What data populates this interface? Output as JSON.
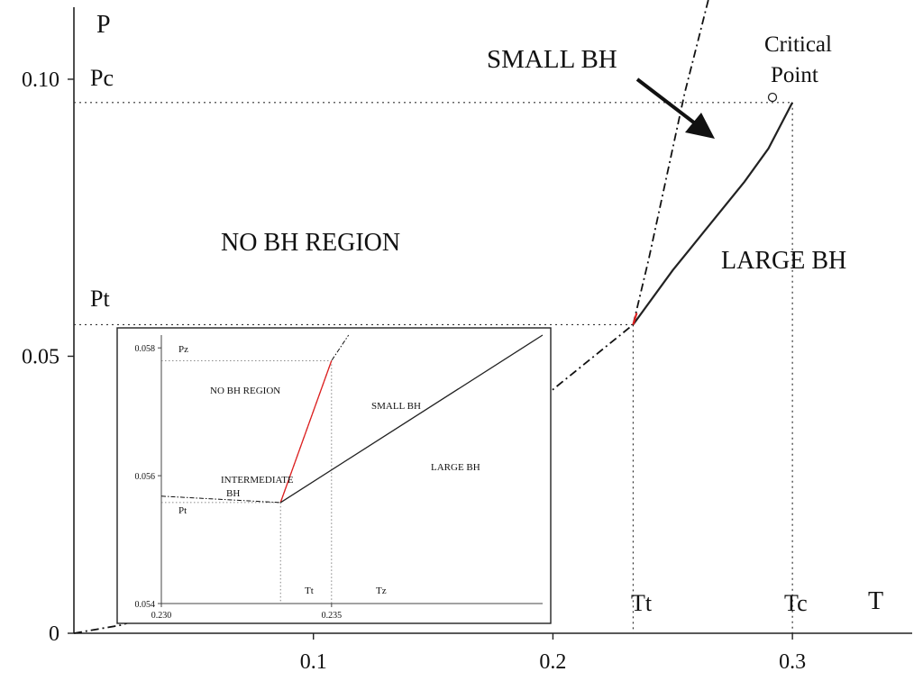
{
  "chart_data": [
    {
      "type": "line",
      "title": "",
      "xlabel": "T",
      "ylabel": "P",
      "xlim": [
        0,
        0.35
      ],
      "ylim": [
        0,
        0.113
      ],
      "x_ticks": [
        "0.1",
        "0.2",
        "0.3"
      ],
      "y_ticks": [
        "0",
        "0.05",
        "0.10"
      ],
      "x_tick_values": [
        0.1,
        0.2,
        0.3
      ],
      "y_tick_values": [
        0,
        0.05,
        0.1
      ],
      "reference_values": {
        "Tt": 0.2335,
        "Pt": 0.0557,
        "Tc": 0.3,
        "Pc": 0.0958
      },
      "reference_labels": {
        "Pc": "Pc",
        "Pt": "Pt",
        "Tt": "Tt",
        "Tc": "Tc"
      },
      "series": [
        {
          "style": "dashdot",
          "points": [
            [
              0,
              0
            ],
            [
              0.02,
              0.0015
            ],
            [
              0.05,
              0.006
            ],
            [
              0.1,
              0.0155
            ],
            [
              0.15,
              0.0275
            ],
            [
              0.2,
              0.044
            ],
            [
              0.2335,
              0.0557
            ]
          ]
        },
        {
          "style": "dashdot",
          "points": [
            [
              0.2335,
              0.0557
            ],
            [
              0.24,
              0.0675
            ],
            [
              0.245,
              0.0775
            ],
            [
              0.25,
              0.0875
            ],
            [
              0.255,
              0.0975
            ],
            [
              0.26,
              0.106
            ],
            [
              0.265,
              0.1145
            ]
          ]
        },
        {
          "style": "solid",
          "color": "#222222",
          "points": [
            [
              0.2335,
              0.0557
            ],
            [
              0.25,
              0.0655
            ],
            [
              0.265,
              0.0735
            ],
            [
              0.28,
              0.0815
            ],
            [
              0.29,
              0.0875
            ],
            [
              0.3,
              0.0958
            ]
          ]
        },
        {
          "style": "solid",
          "color": "#e02020",
          "points": [
            [
              0.2335,
              0.0557
            ],
            [
              0.235,
              0.0578
            ]
          ]
        }
      ],
      "critical_point": [
        0.3,
        0.0958
      ],
      "annotations": {
        "critical_point": [
          "Critical",
          "Point"
        ],
        "small_bh": "SMALL BH",
        "large_bh": "LARGE BH",
        "no_bh_region": "NO BH REGION"
      }
    },
    {
      "type": "line",
      "title": "",
      "xlim": [
        0.23,
        0.2412
      ],
      "ylim": [
        0.054,
        0.0582
      ],
      "x_ticks": [
        "0.230",
        "0.235"
      ],
      "y_ticks": [
        "0.054",
        "0.056",
        "0.058"
      ],
      "x_tick_values": [
        0.23,
        0.235
      ],
      "y_tick_values": [
        0.054,
        0.056,
        0.058
      ],
      "reference_values": {
        "Tt": 0.2335,
        "Tz": 0.235,
        "Pt": 0.05558,
        "Pz": 0.0578
      },
      "reference_labels": {
        "Pz": "Pz",
        "Pt": "Pt",
        "Tt": "Tt",
        "Tz": "Tz"
      },
      "series": [
        {
          "style": "dashdot",
          "points": [
            [
              0.23,
              0.05568
            ],
            [
              0.2335,
              0.05558
            ]
          ]
        },
        {
          "style": "dashdot",
          "points": [
            [
              0.2335,
              0.05558
            ],
            [
              0.235,
              0.0578
            ],
            [
              0.2355,
              0.0582
            ]
          ]
        },
        {
          "style": "solid",
          "color": "#e02020",
          "points": [
            [
              0.2335,
              0.05558
            ],
            [
              0.235,
              0.0578
            ]
          ]
        },
        {
          "style": "solid",
          "color": "#222222",
          "points": [
            [
              0.2335,
              0.05558
            ],
            [
              0.2412,
              0.0582
            ]
          ]
        }
      ],
      "annotations": {
        "no_bh_region": "NO BH REGION",
        "small_bh": "SMALL BH",
        "large_bh": "LARGE BH",
        "intermediate_bh": [
          "INTERMEDIATE",
          "BH"
        ]
      }
    }
  ]
}
